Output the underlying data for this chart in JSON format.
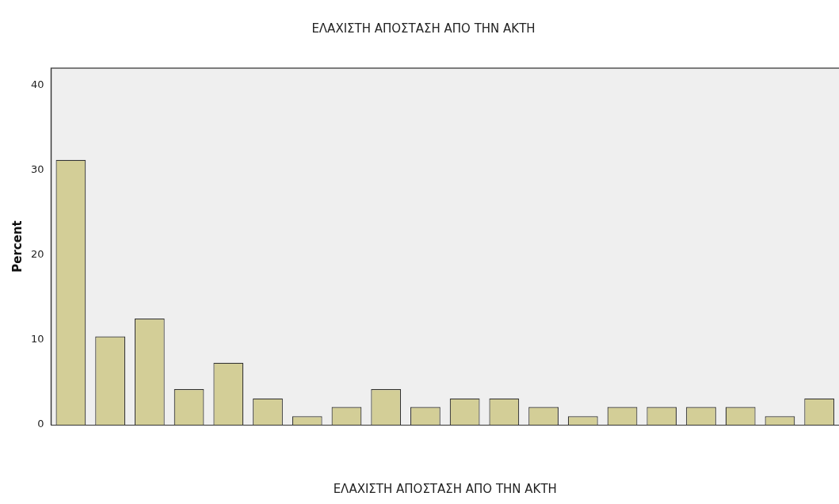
{
  "chart_data": {
    "type": "bar",
    "title": "ΕΛΑΧΙΣΤΗ ΑΠΟΣΤΑΣΗ ΑΠΟ ΤΗΝ ΑΚΤΗ",
    "xlabel": "ΕΛΑΧΙΣΤΗ ΑΠΟΣΤΑΣΗ ΑΠΟ ΤΗΝ ΑΚΤΗ",
    "ylabel": "Percent",
    "categories": [
      null,
      null,
      null,
      null,
      null,
      null,
      null,
      null,
      null,
      null,
      null,
      null,
      null,
      null,
      null,
      null,
      null,
      null,
      null,
      null
    ],
    "values": [
      31.2,
      10.4,
      12.5,
      4.2,
      7.3,
      3.1,
      1.0,
      2.1,
      4.2,
      2.1,
      3.1,
      3.1,
      2.1,
      1.0,
      2.1,
      2.1,
      2.1,
      2.1,
      1.0,
      3.1
    ],
    "color": "#d3ce97",
    "ylim": [
      0,
      42
    ],
    "yticks": [
      0,
      10,
      20,
      30,
      40
    ],
    "grid": false,
    "legend": false
  }
}
